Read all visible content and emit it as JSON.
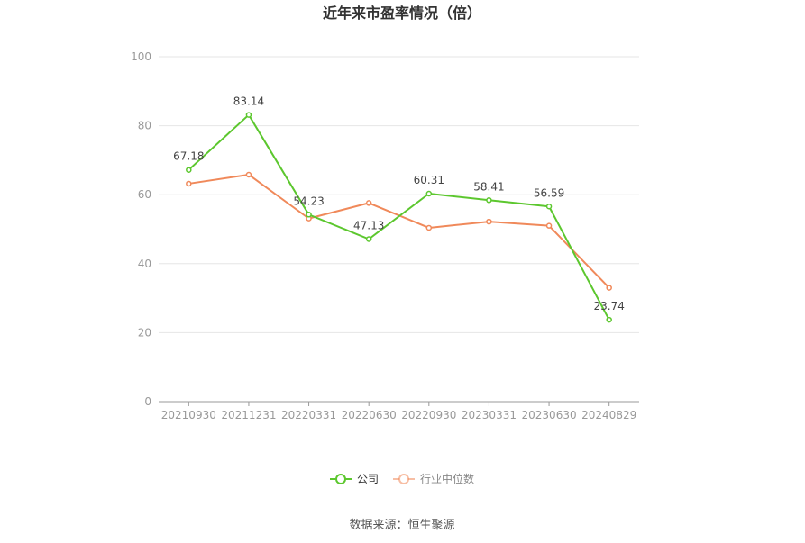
{
  "chart_data": {
    "type": "line",
    "title": "近年来市盈率情况（倍）",
    "categories": [
      "20210930",
      "20211231",
      "20220331",
      "20220630",
      "20220930",
      "20230331",
      "20230630",
      "20240829"
    ],
    "series": [
      {
        "name": "公司",
        "color": "#5cc72e",
        "values": [
          67.18,
          83.14,
          54.23,
          47.13,
          60.31,
          58.41,
          56.59,
          23.74
        ],
        "labels": [
          "67.18",
          "83.14",
          "54.23",
          "47.13",
          "60.31",
          "58.41",
          "56.59",
          "23.74"
        ]
      },
      {
        "name": "行业中位数",
        "color": "#f0895a",
        "values": [
          63.2,
          65.8,
          53.1,
          57.6,
          50.4,
          52.2,
          51.0,
          33.0
        ]
      }
    ],
    "yticks": [
      "0",
      "20",
      "40",
      "60",
      "80",
      "100"
    ],
    "ylim": [
      0,
      100
    ],
    "grid": true,
    "legend_position": "bottom-center",
    "source": "数据来源：恒生聚源"
  }
}
